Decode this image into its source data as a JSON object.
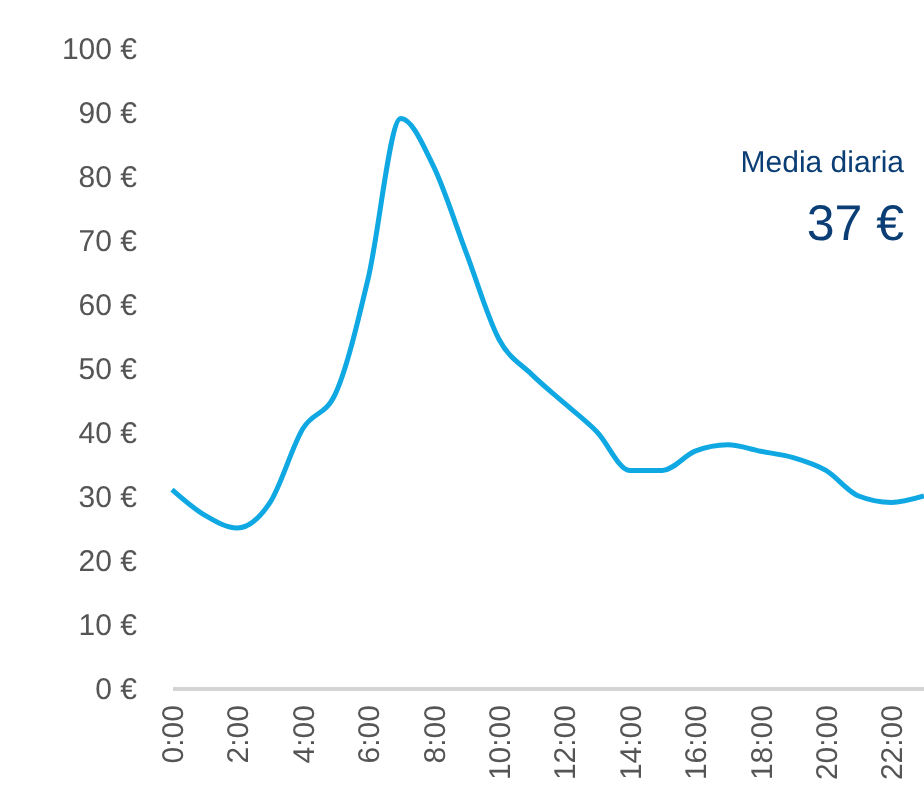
{
  "chart_data": {
    "type": "line",
    "x": [
      0,
      1,
      2,
      3,
      4,
      5,
      6,
      7,
      8,
      9,
      10,
      11,
      12,
      13,
      14,
      15,
      16,
      17,
      18,
      19,
      20,
      21,
      22,
      23
    ],
    "series": [
      {
        "color": "#0fa8e2",
        "values": [
          31,
          27,
          25,
          29,
          40.5,
          46,
          64,
          89,
          81.5,
          68,
          54.5,
          49,
          44.5,
          40,
          34,
          34,
          37,
          38,
          37,
          36,
          34,
          30,
          29,
          30
        ]
      }
    ],
    "xlim": [
      0,
      23
    ],
    "xticks": [
      {
        "value": 0,
        "label": "0:00"
      },
      {
        "value": 2,
        "label": "2:00"
      },
      {
        "value": 4,
        "label": "4:00"
      },
      {
        "value": 6,
        "label": "6:00"
      },
      {
        "value": 8,
        "label": "8:00"
      },
      {
        "value": 10,
        "label": "10:00"
      },
      {
        "value": 12,
        "label": "12:00"
      },
      {
        "value": 14,
        "label": "14:00"
      },
      {
        "value": 16,
        "label": "16:00"
      },
      {
        "value": 18,
        "label": "18:00"
      },
      {
        "value": 20,
        "label": "20:00"
      },
      {
        "value": 22,
        "label": "22:00"
      }
    ],
    "ylim": [
      0,
      100
    ],
    "yticks": [
      {
        "value": 0,
        "label": "0 €"
      },
      {
        "value": 10,
        "label": "10 €"
      },
      {
        "value": 20,
        "label": "20 €"
      },
      {
        "value": 30,
        "label": "30 €"
      },
      {
        "value": 40,
        "label": "40 €"
      },
      {
        "value": 50,
        "label": "50 €"
      },
      {
        "value": 60,
        "label": "60 €"
      },
      {
        "value": 70,
        "label": "70 €"
      },
      {
        "value": 80,
        "label": "80 €"
      },
      {
        "value": 90,
        "label": "90 €"
      },
      {
        "value": 100,
        "label": "100 €"
      }
    ],
    "annotations": [
      "Media diaria",
      "37 €"
    ],
    "grid": false,
    "marker": "none",
    "line_style": "solid"
  }
}
